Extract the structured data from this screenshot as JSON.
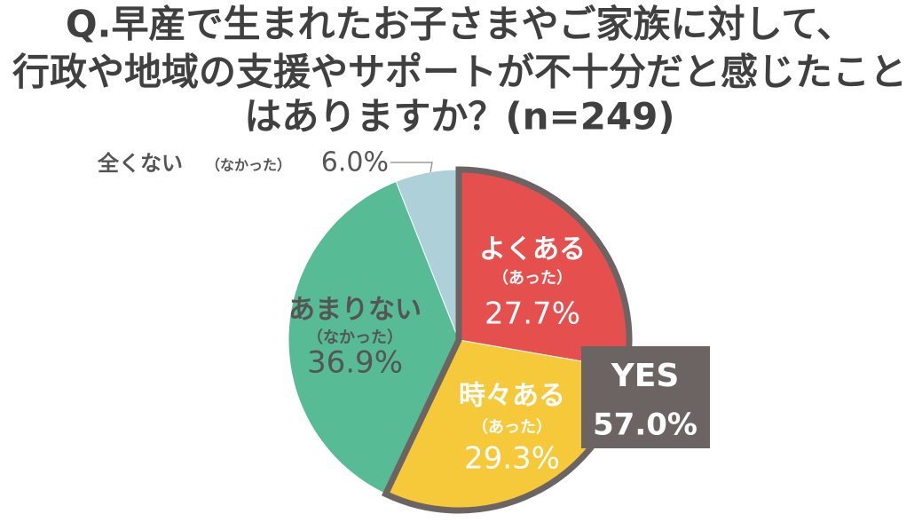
{
  "chart_data": {
    "type": "pie",
    "title": [
      "Q.早産で生まれたお子さまやご家族に対して、",
      "行政や地域の支援やサポートが不十分だと感じたこと",
      "はありますか？(n=249)"
    ],
    "categories": [
      "よくある",
      "時々ある",
      "あまりない",
      "全くない"
    ],
    "sublabels": [
      "（あった）",
      "（あった）",
      "（なかった）",
      "（なかった）"
    ],
    "values": [
      27.7,
      29.3,
      36.9,
      6.0
    ],
    "value_labels": [
      "27.7%",
      "29.3%",
      "36.9%",
      "6.0%"
    ],
    "colors": [
      "#e5504f",
      "#f6c93a",
      "#57bb96",
      "#aed0d9"
    ],
    "highlight": [
      0,
      1
    ],
    "annotation": [
      "YES",
      "57.0%"
    ]
  }
}
